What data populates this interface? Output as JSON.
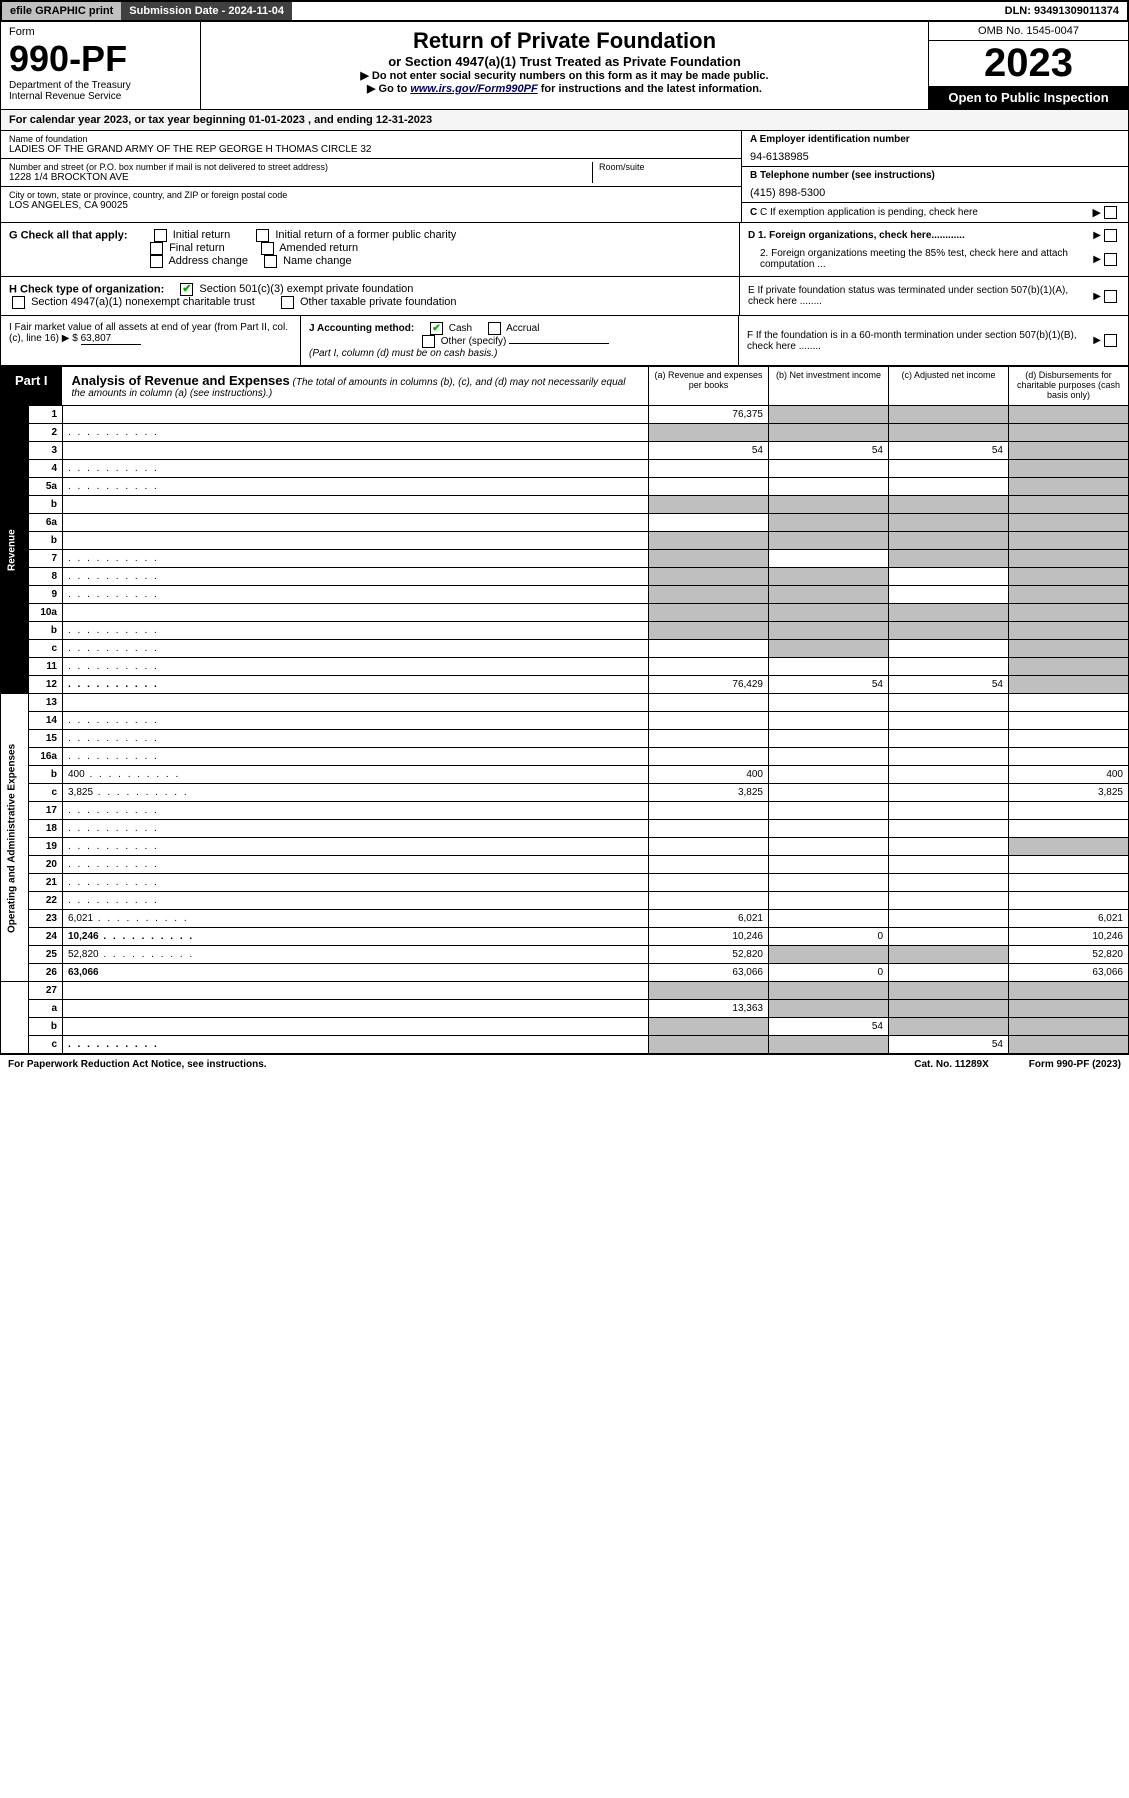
{
  "topbar": {
    "efile": "efile GRAPHIC print",
    "sub_lbl": "Submission Date - ",
    "sub_date": "2024-11-04",
    "dln_lbl": "DLN: ",
    "dln": "93491309011374"
  },
  "hdr": {
    "form_word": "Form",
    "form_no": "990-PF",
    "dept": "Department of the Treasury",
    "irs": "Internal Revenue Service",
    "title": "Return of Private Foundation",
    "sub1": "or Section 4947(a)(1) Trust Treated as Private Foundation",
    "sub2a": "▶ Do not enter social security numbers on this form as it may be made public.",
    "sub2b_pre": "▶ Go to ",
    "sub2b_link": "www.irs.gov/Form990PF",
    "sub2b_post": " for instructions and the latest information.",
    "omb": "OMB No. 1545-0047",
    "yr": "2023",
    "open": "Open to Public Inspection"
  },
  "cal": {
    "pre": "For calendar year 2023, or tax year beginning ",
    "beg": "01-01-2023",
    "mid": " , and ending ",
    "end": "12-31-2023"
  },
  "ident": {
    "name_lbl": "Name of foundation",
    "name": "LADIES OF THE GRAND ARMY OF THE REP GEORGE H THOMAS CIRCLE 32",
    "addr_lbl": "Number and street (or P.O. box number if mail is not delivered to street address)",
    "addr": "1228 1/4 BROCKTON AVE",
    "room_lbl": "Room/suite",
    "city_lbl": "City or town, state or province, country, and ZIP or foreign postal code",
    "city": "LOS ANGELES, CA  90025",
    "a_lbl": "A Employer identification number",
    "ein": "94-6138985",
    "b_lbl": "B Telephone number (see instructions)",
    "phone": "(415) 898-5300",
    "c_lbl": "C If exemption application is pending, check here"
  },
  "G": {
    "lbl": "G Check all that apply:",
    "opts": [
      "Initial return",
      "Final return",
      "Address change",
      "Initial return of a former public charity",
      "Amended return",
      "Name change"
    ]
  },
  "D": {
    "d1": "D 1. Foreign organizations, check here............",
    "d2": "2. Foreign organizations meeting the 85% test, check here and attach computation ..."
  },
  "H": {
    "lbl": "H Check type of organization:",
    "opt1": "Section 501(c)(3) exempt private foundation",
    "opt2": "Section 4947(a)(1) nonexempt charitable trust",
    "opt3": "Other taxable private foundation"
  },
  "E": "E  If private foundation status was terminated under section 507(b)(1)(A), check here ........",
  "I": {
    "lbl": "I Fair market value of all assets at end of year (from Part II, col. (c), line 16)",
    "amt": "63,807"
  },
  "J": {
    "lbl": "J Accounting method:",
    "cash": "Cash",
    "accr": "Accrual",
    "other": "Other (specify)",
    "note": "(Part I, column (d) must be on cash basis.)"
  },
  "F": "F  If the foundation is in a 60-month termination under section 507(b)(1)(B), check here ........",
  "part1": {
    "tag": "Part I",
    "title": "Analysis of Revenue and Expenses",
    "note": "(The total of amounts in columns (b), (c), and (d) may not necessarily equal the amounts in column (a) (see instructions).)",
    "col_a": "(a)  Revenue and expenses per books",
    "col_b": "(b)  Net investment income",
    "col_c": "(c)  Adjusted net income",
    "col_d": "(d)  Disbursements for charitable purposes (cash basis only)",
    "side_rev": "Revenue",
    "side_exp": "Operating and Administrative Expenses"
  },
  "rows": [
    {
      "g": "R",
      "n": "1",
      "d": "",
      "a": "76,375",
      "b": "",
      "c": "",
      "sb": 1,
      "sc": 1,
      "sd": 1
    },
    {
      "g": "R",
      "n": "2",
      "d": "",
      "dots": 1,
      "a": "",
      "b": "",
      "c": "",
      "sa": 1,
      "sb": 1,
      "sc": 1,
      "sd": 1
    },
    {
      "g": "R",
      "n": "3",
      "d": "",
      "a": "54",
      "b": "54",
      "c": "54",
      "sd": 1
    },
    {
      "g": "R",
      "n": "4",
      "d": "",
      "dots": 1,
      "a": "",
      "b": "",
      "c": "",
      "sd": 1
    },
    {
      "g": "R",
      "n": "5a",
      "d": "",
      "dots": 1,
      "a": "",
      "b": "",
      "c": "",
      "sd": 1
    },
    {
      "g": "R",
      "n": "b",
      "d": "",
      "a": "",
      "b": "",
      "c": "",
      "sa": 1,
      "sb": 1,
      "sc": 1,
      "sd": 1
    },
    {
      "g": "R",
      "n": "6a",
      "d": "",
      "a": "",
      "b": "",
      "c": "",
      "sb": 1,
      "sc": 1,
      "sd": 1
    },
    {
      "g": "R",
      "n": "b",
      "d": "",
      "a": "",
      "b": "",
      "c": "",
      "sa": 1,
      "sb": 1,
      "sc": 1,
      "sd": 1
    },
    {
      "g": "R",
      "n": "7",
      "d": "",
      "dots": 1,
      "a": "",
      "b": "",
      "c": "",
      "sa": 1,
      "sc": 1,
      "sd": 1
    },
    {
      "g": "R",
      "n": "8",
      "d": "",
      "dots": 1,
      "a": "",
      "b": "",
      "c": "",
      "sa": 1,
      "sb": 1,
      "sd": 1
    },
    {
      "g": "R",
      "n": "9",
      "d": "",
      "dots": 1,
      "a": "",
      "b": "",
      "c": "",
      "sa": 1,
      "sb": 1,
      "sd": 1
    },
    {
      "g": "R",
      "n": "10a",
      "d": "",
      "a": "",
      "b": "",
      "c": "",
      "sa": 1,
      "sb": 1,
      "sc": 1,
      "sd": 1
    },
    {
      "g": "R",
      "n": "b",
      "d": "",
      "dots": 1,
      "a": "",
      "b": "",
      "c": "",
      "sa": 1,
      "sb": 1,
      "sc": 1,
      "sd": 1
    },
    {
      "g": "R",
      "n": "c",
      "d": "",
      "dots": 1,
      "a": "",
      "b": "",
      "c": "",
      "sb": 1,
      "sd": 1
    },
    {
      "g": "R",
      "n": "11",
      "d": "",
      "dots": 1,
      "a": "",
      "b": "",
      "c": "",
      "sd": 1
    },
    {
      "g": "R",
      "n": "12",
      "d": "",
      "bold": 1,
      "dots": 1,
      "a": "76,429",
      "b": "54",
      "c": "54",
      "sd": 1
    },
    {
      "g": "E",
      "n": "13",
      "d": "",
      "a": "",
      "b": "",
      "c": ""
    },
    {
      "g": "E",
      "n": "14",
      "d": "",
      "dots": 1,
      "a": "",
      "b": "",
      "c": ""
    },
    {
      "g": "E",
      "n": "15",
      "d": "",
      "dots": 1,
      "a": "",
      "b": "",
      "c": ""
    },
    {
      "g": "E",
      "n": "16a",
      "d": "",
      "dots": 1,
      "a": "",
      "b": "",
      "c": ""
    },
    {
      "g": "E",
      "n": "b",
      "d": "400",
      "dots": 1,
      "a": "400",
      "b": "",
      "c": ""
    },
    {
      "g": "E",
      "n": "c",
      "d": "3,825",
      "dots": 1,
      "a": "3,825",
      "b": "",
      "c": ""
    },
    {
      "g": "E",
      "n": "17",
      "d": "",
      "dots": 1,
      "a": "",
      "b": "",
      "c": ""
    },
    {
      "g": "E",
      "n": "18",
      "d": "",
      "dots": 1,
      "a": "",
      "b": "",
      "c": ""
    },
    {
      "g": "E",
      "n": "19",
      "d": "",
      "dots": 1,
      "a": "",
      "b": "",
      "c": "",
      "sd": 1
    },
    {
      "g": "E",
      "n": "20",
      "d": "",
      "dots": 1,
      "a": "",
      "b": "",
      "c": ""
    },
    {
      "g": "E",
      "n": "21",
      "d": "",
      "dots": 1,
      "a": "",
      "b": "",
      "c": ""
    },
    {
      "g": "E",
      "n": "22",
      "d": "",
      "dots": 1,
      "a": "",
      "b": "",
      "c": ""
    },
    {
      "g": "E",
      "n": "23",
      "d": "6,021",
      "dots": 1,
      "a": "6,021",
      "b": "",
      "c": ""
    },
    {
      "g": "E",
      "n": "24",
      "d": "10,246",
      "bold": 1,
      "dots": 1,
      "a": "10,246",
      "b": "0",
      "c": ""
    },
    {
      "g": "E",
      "n": "25",
      "d": "52,820",
      "dots": 1,
      "a": "52,820",
      "b": "",
      "c": "",
      "sb": 1,
      "sc": 1
    },
    {
      "g": "E",
      "n": "26",
      "d": "63,066",
      "bold": 1,
      "a": "63,066",
      "b": "0",
      "c": ""
    },
    {
      "g": "",
      "n": "27",
      "d": "",
      "a": "",
      "b": "",
      "c": "",
      "sa": 1,
      "sb": 1,
      "sc": 1,
      "sd": 1
    },
    {
      "g": "",
      "n": "a",
      "d": "",
      "bold": 1,
      "a": "13,363",
      "b": "",
      "c": "",
      "sb": 1,
      "sc": 1,
      "sd": 1
    },
    {
      "g": "",
      "n": "b",
      "d": "",
      "bold": 1,
      "a": "",
      "b": "54",
      "c": "",
      "sa": 1,
      "sc": 1,
      "sd": 1
    },
    {
      "g": "",
      "n": "c",
      "d": "",
      "bold": 1,
      "dots": 1,
      "a": "",
      "b": "",
      "c": "54",
      "sa": 1,
      "sb": 1,
      "sd": 1
    }
  ],
  "ftr": {
    "l": "For Paperwork Reduction Act Notice, see instructions.",
    "c": "Cat. No. 11289X",
    "r": "Form 990-PF (2023)"
  }
}
